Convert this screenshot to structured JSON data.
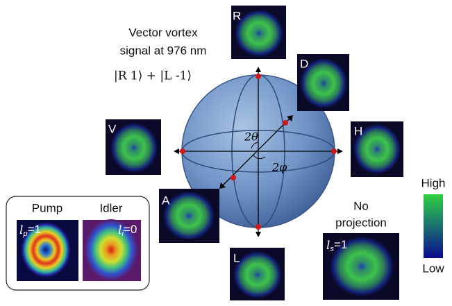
{
  "title": {
    "line1": "Vector vortex",
    "line2": "signal at 976 nm",
    "state": "|R 1⟩ + |L -1⟩"
  },
  "sphere": {
    "theta_label": "2θ",
    "phi_label": "2φ"
  },
  "projections": {
    "R": "R",
    "D": "D",
    "H": "H",
    "V": "V",
    "A": "A",
    "L": "L"
  },
  "inset": {
    "pump": {
      "title": "Pump",
      "symbol": "l",
      "sub": "p",
      "eq": "=1"
    },
    "idler": {
      "title": "Idler",
      "symbol": "l",
      "sub": "i",
      "eq": "=0"
    }
  },
  "no_projection": {
    "line1": "No",
    "line2": "projection",
    "symbol": "l",
    "sub": "s",
    "eq": "=1"
  },
  "colorbar": {
    "high": "High",
    "low": "Low"
  }
}
